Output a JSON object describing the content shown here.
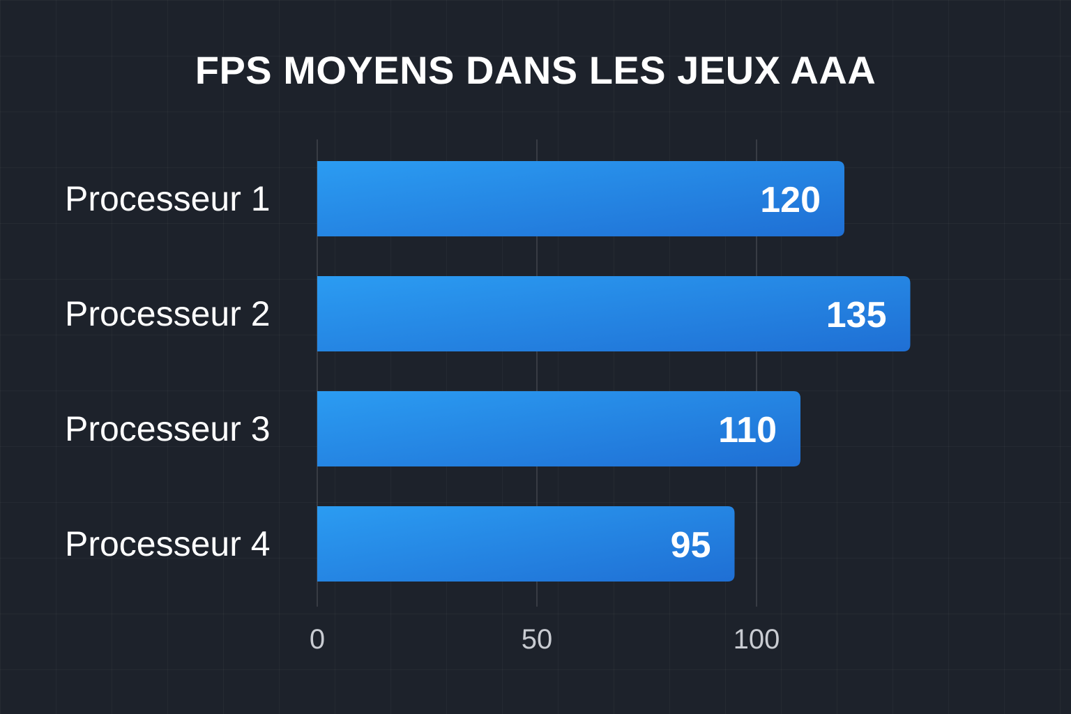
{
  "chart_data": {
    "type": "bar",
    "orientation": "horizontal",
    "title": "FPS MOYENS DANS LES JEUX AAA",
    "categories": [
      "Processeur 1",
      "Processeur 2",
      "Processeur 3",
      "Processeur 4"
    ],
    "values": [
      120,
      135,
      110,
      95
    ],
    "data_labels": [
      "120",
      "135",
      "110",
      "95"
    ],
    "xticks": [
      0,
      50,
      100
    ],
    "xtick_labels": [
      "0",
      "50",
      "100"
    ],
    "xlim": [
      0,
      150
    ],
    "xlabel": "",
    "ylabel": "",
    "grid": true,
    "colors": {
      "bar_start": "#2b9cf2",
      "bar_end": "#1f6fd4",
      "background": "#1d222b",
      "text": "#ffffff",
      "tick": "#c9ccd2"
    }
  }
}
